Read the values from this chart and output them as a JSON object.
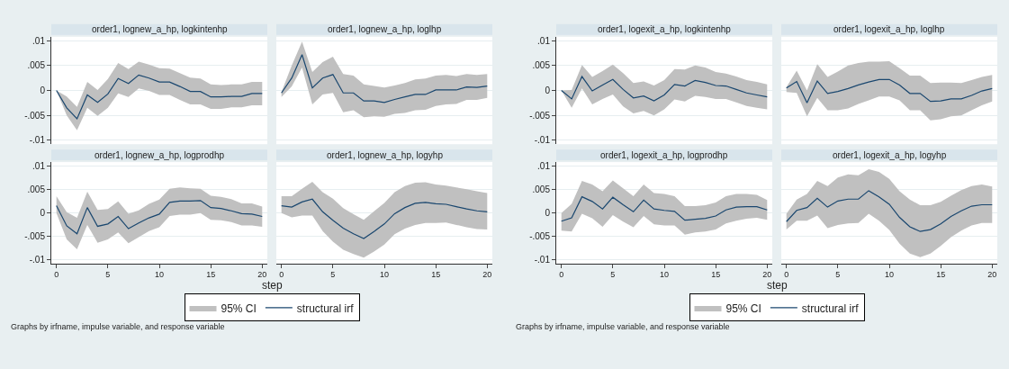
{
  "chart_data": [
    {
      "type": "line",
      "title": "order1, lognew_a_hp, logkintenhp",
      "x": [
        0,
        1,
        2,
        3,
        4,
        5,
        6,
        7,
        8,
        9,
        10,
        11,
        12,
        13,
        14,
        15,
        16,
        17,
        18,
        19,
        20
      ],
      "xlim": [
        -0.5,
        20.5
      ],
      "xticks": [
        0,
        5,
        10,
        15,
        20
      ],
      "ylim": [
        -0.0108,
        0.0108
      ],
      "yticks": [
        {
          "value": -0.01,
          "label": "-.01"
        },
        {
          "value": -0.005,
          "label": "-.005"
        },
        0,
        {
          "value": 0.005,
          "label": ".005"
        },
        {
          "value": 0.01,
          "label": ".01"
        }
      ],
      "grid": "y",
      "tick_labels": "y",
      "series": [
        {
          "color": "#1a476f",
          "values": [
            0,
            -0.0035,
            -0.0057,
            -0.0009,
            -0.0024,
            -0.0007,
            0.0024,
            0.0014,
            0.0031,
            0.0025,
            0.0017,
            0.0017,
            0.0008,
            -0.0002,
            -0.0002,
            -0.0013,
            -0.0013,
            -0.0012,
            -0.0012,
            -0.0006,
            -0.0006
          ],
          "lower": [
            0,
            -0.005,
            -0.008,
            -0.0035,
            -0.0051,
            -0.0035,
            -0.0006,
            -0.0013,
            0.0004,
            -0.0001,
            -0.0009,
            -0.0009,
            -0.0019,
            -0.0028,
            -0.0028,
            -0.0037,
            -0.0037,
            -0.0034,
            -0.0034,
            -0.003,
            -0.003
          ],
          "upper": [
            0,
            -0.0012,
            -0.0033,
            0.0017,
            0.0001,
            0.0023,
            0.0055,
            0.0043,
            0.0058,
            0.0052,
            0.0045,
            0.0044,
            0.0035,
            0.0026,
            0.0024,
            0.0012,
            0.0011,
            0.0012,
            0.0012,
            0.0017,
            0.0017
          ]
        }
      ]
    },
    {
      "type": "line",
      "title": "order1, lognew_a_hp, loglhp",
      "x": [
        0,
        1,
        2,
        3,
        4,
        5,
        6,
        7,
        8,
        9,
        10,
        11,
        12,
        13,
        14,
        15,
        16,
        17,
        18,
        19,
        20
      ],
      "xlim": [
        -0.5,
        20.5
      ],
      "xticks": [
        0,
        5,
        10,
        15,
        20
      ],
      "ylim": [
        -0.0108,
        0.0108
      ],
      "yticks": [
        {
          "value": -0.01,
          "label": null
        },
        {
          "value": -0.005,
          "label": null
        },
        {
          "value": 0,
          "label": null
        },
        {
          "value": 0.005,
          "label": null
        },
        {
          "value": 0.01,
          "label": null
        }
      ],
      "grid": "y",
      "tick_labels": false,
      "series": [
        {
          "color": "#1a476f",
          "values": [
            -0.0005,
            0.0025,
            0.0072,
            0.0005,
            0.0025,
            0.0032,
            -0.0005,
            -0.0005,
            -0.0021,
            -0.0021,
            -0.0024,
            -0.0018,
            -0.0013,
            -0.0008,
            -0.0008,
            0.0001,
            0.0001,
            0.0001,
            0.0007,
            0.0006,
            0.0009
          ],
          "lower": [
            -0.0013,
            0.0008,
            0.0046,
            -0.0028,
            -0.0008,
            -0.0005,
            -0.0044,
            -0.004,
            -0.0054,
            -0.0052,
            -0.0053,
            -0.0047,
            -0.0045,
            -0.004,
            -0.0039,
            -0.0031,
            -0.0028,
            -0.0027,
            -0.0019,
            -0.0019,
            -0.0015
          ],
          "upper": [
            -0.0003,
            0.005,
            0.0098,
            0.0037,
            0.0057,
            0.0068,
            0.0033,
            0.003,
            0.0012,
            0.0009,
            0.0006,
            0.001,
            0.0015,
            0.0022,
            0.0024,
            0.003,
            0.0031,
            0.0029,
            0.0033,
            0.0031,
            0.0033
          ]
        }
      ]
    },
    {
      "type": "line",
      "title": "order1, lognew_a_hp, logprodhp",
      "xlabel": "step",
      "legend": "bottom",
      "annotations": [
        "95% CI",
        "Graphs by irfname, impulse variable, and response variable"
      ],
      "x": [
        0,
        1,
        2,
        3,
        4,
        5,
        6,
        7,
        8,
        9,
        10,
        11,
        12,
        13,
        14,
        15,
        16,
        17,
        18,
        19,
        20
      ],
      "xlim": [
        -0.5,
        20.5
      ],
      "xticks": [
        0,
        5,
        10,
        15,
        20
      ],
      "ylim": [
        -0.0108,
        0.0108
      ],
      "yticks": [
        {
          "value": -0.01,
          "label": "-.01"
        },
        {
          "value": -0.005,
          "label": "-.005"
        },
        0,
        {
          "value": 0.005,
          "label": ".005"
        },
        {
          "value": 0.01,
          "label": ".01"
        }
      ],
      "grid": "y",
      "series": [
        {
          "name": "structural irf",
          "color": "#1a476f",
          "values": [
            0.0015,
            -0.0028,
            -0.0045,
            0.0011,
            -0.0029,
            -0.0024,
            -0.0008,
            -0.0034,
            -0.0022,
            -0.0011,
            -0.0003,
            0.0022,
            0.0025,
            0.0025,
            0.0026,
            0.0011,
            0.0009,
            0.0004,
            -0.0002,
            -0.0003,
            -0.0008
          ],
          "lower": [
            -0.0001,
            -0.0057,
            -0.0078,
            -0.0026,
            -0.0064,
            -0.0057,
            -0.0042,
            -0.0065,
            -0.0052,
            -0.0039,
            -0.0031,
            -0.0007,
            -0.0004,
            -0.0004,
            -0.0001,
            -0.0015,
            -0.0016,
            -0.002,
            -0.0027,
            -0.0027,
            -0.003
          ],
          "upper": [
            0.0035,
            0.0001,
            -0.0011,
            0.0045,
            0.0006,
            0.0008,
            0.0024,
            -0.0002,
            0.0005,
            0.0019,
            0.0028,
            0.0051,
            0.0054,
            0.0052,
            0.0051,
            0.0036,
            0.0034,
            0.0029,
            0.002,
            0.002,
            0.0013
          ]
        }
      ]
    },
    {
      "type": "line",
      "title": "order1, lognew_a_hp, logyhp",
      "x": [
        0,
        1,
        2,
        3,
        4,
        5,
        6,
        7,
        8,
        9,
        10,
        11,
        12,
        13,
        14,
        15,
        16,
        17,
        18,
        19,
        20
      ],
      "xlim": [
        -0.5,
        20.5
      ],
      "xticks": [
        0,
        5,
        10,
        15,
        20
      ],
      "ylim": [
        -0.0108,
        0.0108
      ],
      "yticks": [
        {
          "value": -0.01,
          "label": null
        },
        {
          "value": -0.005,
          "label": null
        },
        {
          "value": 0,
          "label": null
        },
        {
          "value": 0.005,
          "label": null
        },
        {
          "value": 0.01,
          "label": null
        }
      ],
      "grid": "y",
      "tick_labels": "x",
      "series": [
        {
          "color": "#1a476f",
          "values": [
            0.0015,
            0.0012,
            0.0023,
            0.0029,
            0.0002,
            -0.0016,
            -0.0033,
            -0.0045,
            -0.0055,
            -0.004,
            -0.0024,
            -0.0002,
            0.0011,
            0.002,
            0.0022,
            0.0019,
            0.0018,
            0.0013,
            0.0008,
            0.0004,
            0.0002
          ],
          "lower": [
            -0.0001,
            -0.001,
            -0.0006,
            -0.0006,
            -0.0039,
            -0.0062,
            -0.0079,
            -0.0088,
            -0.0096,
            -0.0083,
            -0.0068,
            -0.0046,
            -0.0034,
            -0.0026,
            -0.0022,
            -0.0022,
            -0.0021,
            -0.0026,
            -0.0031,
            -0.0035,
            -0.0036
          ],
          "upper": [
            0.0035,
            0.0035,
            0.0051,
            0.0066,
            0.0044,
            0.003,
            0.001,
            -0.0003,
            -0.0015,
            0.0003,
            0.0021,
            0.0044,
            0.0057,
            0.0064,
            0.0065,
            0.006,
            0.0058,
            0.0054,
            0.005,
            0.0046,
            0.0042
          ]
        }
      ]
    },
    {
      "type": "line",
      "title": "order1, logexit_a_hp, logkintenhp",
      "x": [
        0,
        1,
        2,
        3,
        4,
        5,
        6,
        7,
        8,
        9,
        10,
        11,
        12,
        13,
        14,
        15,
        16,
        17,
        18,
        19,
        20
      ],
      "xlim": [
        -0.5,
        20.5
      ],
      "xticks": [
        0,
        5,
        10,
        15,
        20
      ],
      "ylim": [
        -0.0108,
        0.0108
      ],
      "yticks": [
        {
          "value": -0.01,
          "label": "-.01"
        },
        {
          "value": -0.005,
          "label": "-.005"
        },
        0,
        {
          "value": 0.005,
          "label": ".005"
        },
        {
          "value": 0.01,
          "label": ".01"
        }
      ],
      "grid": "y",
      "tick_labels": "y",
      "series": [
        {
          "color": "#1a476f",
          "values": [
            0,
            -0.0017,
            0.0028,
            -0.0001,
            0.0011,
            0.0022,
            0.0002,
            -0.0015,
            -0.0011,
            -0.0021,
            -0.0009,
            0.0012,
            0.0009,
            0.002,
            0.0016,
            0.001,
            0.0009,
            0.0002,
            -0.0005,
            -0.0009,
            -0.0013
          ],
          "lower": [
            0,
            -0.0035,
            0.0004,
            -0.0028,
            -0.0017,
            -0.0008,
            -0.0032,
            -0.0046,
            -0.0041,
            -0.005,
            -0.0038,
            -0.0018,
            -0.0022,
            -0.0011,
            -0.0013,
            -0.0017,
            -0.0017,
            -0.0024,
            -0.0031,
            -0.0035,
            -0.0038
          ],
          "upper": [
            0,
            0.0001,
            0.0051,
            0.0027,
            0.0039,
            0.0052,
            0.0035,
            0.0015,
            0.0018,
            0.001,
            0.0021,
            0.0043,
            0.0042,
            0.005,
            0.0046,
            0.0037,
            0.0034,
            0.0028,
            0.0021,
            0.0017,
            0.0012
          ]
        }
      ]
    },
    {
      "type": "line",
      "title": "order1, logexit_a_hp, loglhp",
      "x": [
        0,
        1,
        2,
        3,
        4,
        5,
        6,
        7,
        8,
        9,
        10,
        11,
        12,
        13,
        14,
        15,
        16,
        17,
        18,
        19,
        20
      ],
      "xlim": [
        -0.5,
        20.5
      ],
      "xticks": [
        0,
        5,
        10,
        15,
        20
      ],
      "ylim": [
        -0.0108,
        0.0108
      ],
      "yticks": [
        {
          "value": -0.01,
          "label": null
        },
        {
          "value": -0.005,
          "label": null
        },
        {
          "value": 0,
          "label": null
        },
        {
          "value": 0.005,
          "label": null
        },
        {
          "value": 0.01,
          "label": null
        }
      ],
      "grid": "y",
      "tick_labels": false,
      "series": [
        {
          "color": "#1a476f",
          "values": [
            0.0005,
            0.0018,
            -0.0025,
            0.0019,
            -0.0006,
            -0.0002,
            0.0004,
            0.0011,
            0.0017,
            0.0022,
            0.0022,
            0.0011,
            -0.0006,
            -0.0006,
            -0.0022,
            -0.0021,
            -0.0017,
            -0.0017,
            -0.001,
            -0.0001,
            0.0004
          ],
          "lower": [
            -0.0003,
            -0.0005,
            -0.0052,
            -0.0015,
            -0.004,
            -0.004,
            -0.0036,
            -0.0027,
            -0.002,
            -0.0012,
            -0.0012,
            -0.002,
            -0.004,
            -0.004,
            -0.006,
            -0.0058,
            -0.0052,
            -0.005,
            -0.004,
            -0.003,
            -0.0022
          ],
          "upper": [
            0.0007,
            0.004,
            0,
            0.0053,
            0.0027,
            0.0038,
            0.005,
            0.0055,
            0.0058,
            0.0058,
            0.0059,
            0.0045,
            0.003,
            0.003,
            0.0015,
            0.0016,
            0.0016,
            0.0015,
            0.0021,
            0.0027,
            0.0031
          ]
        }
      ]
    },
    {
      "type": "line",
      "title": "order1, logexit_a_hp, logprodhp",
      "xlabel": "step",
      "legend": "bottom",
      "annotations": [
        "95% CI",
        "Graphs by irfname, impulse variable, and response variable"
      ],
      "x": [
        0,
        1,
        2,
        3,
        4,
        5,
        6,
        7,
        8,
        9,
        10,
        11,
        12,
        13,
        14,
        15,
        16,
        17,
        18,
        19,
        20
      ],
      "xlim": [
        -0.5,
        20.5
      ],
      "xticks": [
        0,
        5,
        10,
        15,
        20
      ],
      "ylim": [
        -0.0108,
        0.0108
      ],
      "yticks": [
        {
          "value": -0.01,
          "label": "-.01"
        },
        {
          "value": -0.005,
          "label": "-.005"
        },
        0,
        {
          "value": 0.005,
          "label": ".005"
        },
        {
          "value": 0.01,
          "label": ".01"
        }
      ],
      "grid": "y",
      "series": [
        {
          "name": "structural irf",
          "color": "#1a476f",
          "values": [
            -0.0018,
            -0.0011,
            0.0034,
            0.0024,
            0.0008,
            0.0033,
            0.0017,
            0.0002,
            0.0027,
            0.0008,
            0.0005,
            0.0003,
            -0.0016,
            -0.0014,
            -0.0012,
            -0.0007,
            0.0006,
            0.0012,
            0.0013,
            0.0013,
            0.0006
          ],
          "lower": [
            -0.0038,
            -0.004,
            -0.0002,
            -0.0012,
            -0.003,
            -0.0005,
            -0.0019,
            -0.0031,
            -0.0007,
            -0.0025,
            -0.0027,
            -0.0027,
            -0.0047,
            -0.0042,
            -0.004,
            -0.0036,
            -0.0023,
            -0.0017,
            -0.0013,
            -0.0011,
            -0.0015
          ],
          "upper": [
            -0.0001,
            0.0019,
            0.0068,
            0.006,
            0.0046,
            0.0069,
            0.0052,
            0.0035,
            0.006,
            0.0042,
            0.004,
            0.0035,
            0.0014,
            0.0014,
            0.0016,
            0.0022,
            0.0035,
            0.004,
            0.004,
            0.0038,
            0.0027
          ]
        }
      ]
    },
    {
      "type": "line",
      "title": "order1, logexit_a_hp, logyhp",
      "x": [
        0,
        1,
        2,
        3,
        4,
        5,
        6,
        7,
        8,
        9,
        10,
        11,
        12,
        13,
        14,
        15,
        16,
        17,
        18,
        19,
        20
      ],
      "xlim": [
        -0.5,
        20.5
      ],
      "xticks": [
        0,
        5,
        10,
        15,
        20
      ],
      "ylim": [
        -0.0108,
        0.0108
      ],
      "yticks": [
        {
          "value": -0.01,
          "label": null
        },
        {
          "value": -0.005,
          "label": null
        },
        {
          "value": 0,
          "label": null
        },
        {
          "value": 0.005,
          "label": null
        },
        {
          "value": 0.01,
          "label": null
        }
      ],
      "grid": "y",
      "tick_labels": "x",
      "series": [
        {
          "color": "#1a476f",
          "values": [
            -0.0019,
            0.0005,
            0.0011,
            0.0031,
            0.0012,
            0.0025,
            0.0029,
            0.0029,
            0.0047,
            0.0034,
            0.0018,
            -0.001,
            -0.003,
            -0.004,
            -0.0036,
            -0.0024,
            -0.0008,
            0.0004,
            0.0014,
            0.0017,
            0.0017
          ],
          "lower": [
            -0.0036,
            -0.0017,
            -0.0017,
            -0.0006,
            -0.0033,
            -0.0026,
            -0.0023,
            -0.0022,
            -0.0002,
            -0.0017,
            -0.0037,
            -0.0066,
            -0.0087,
            -0.0095,
            -0.0087,
            -0.0071,
            -0.0052,
            -0.0038,
            -0.0027,
            -0.0022,
            -0.0022
          ],
          "upper": [
            -0.0002,
            0.0028,
            0.004,
            0.0068,
            0.0057,
            0.0075,
            0.0082,
            0.008,
            0.0093,
            0.0087,
            0.0072,
            0.0046,
            0.0028,
            0.0016,
            0.0016,
            0.0023,
            0.0036,
            0.0048,
            0.0057,
            0.006,
            0.0056
          ]
        }
      ]
    }
  ]
}
